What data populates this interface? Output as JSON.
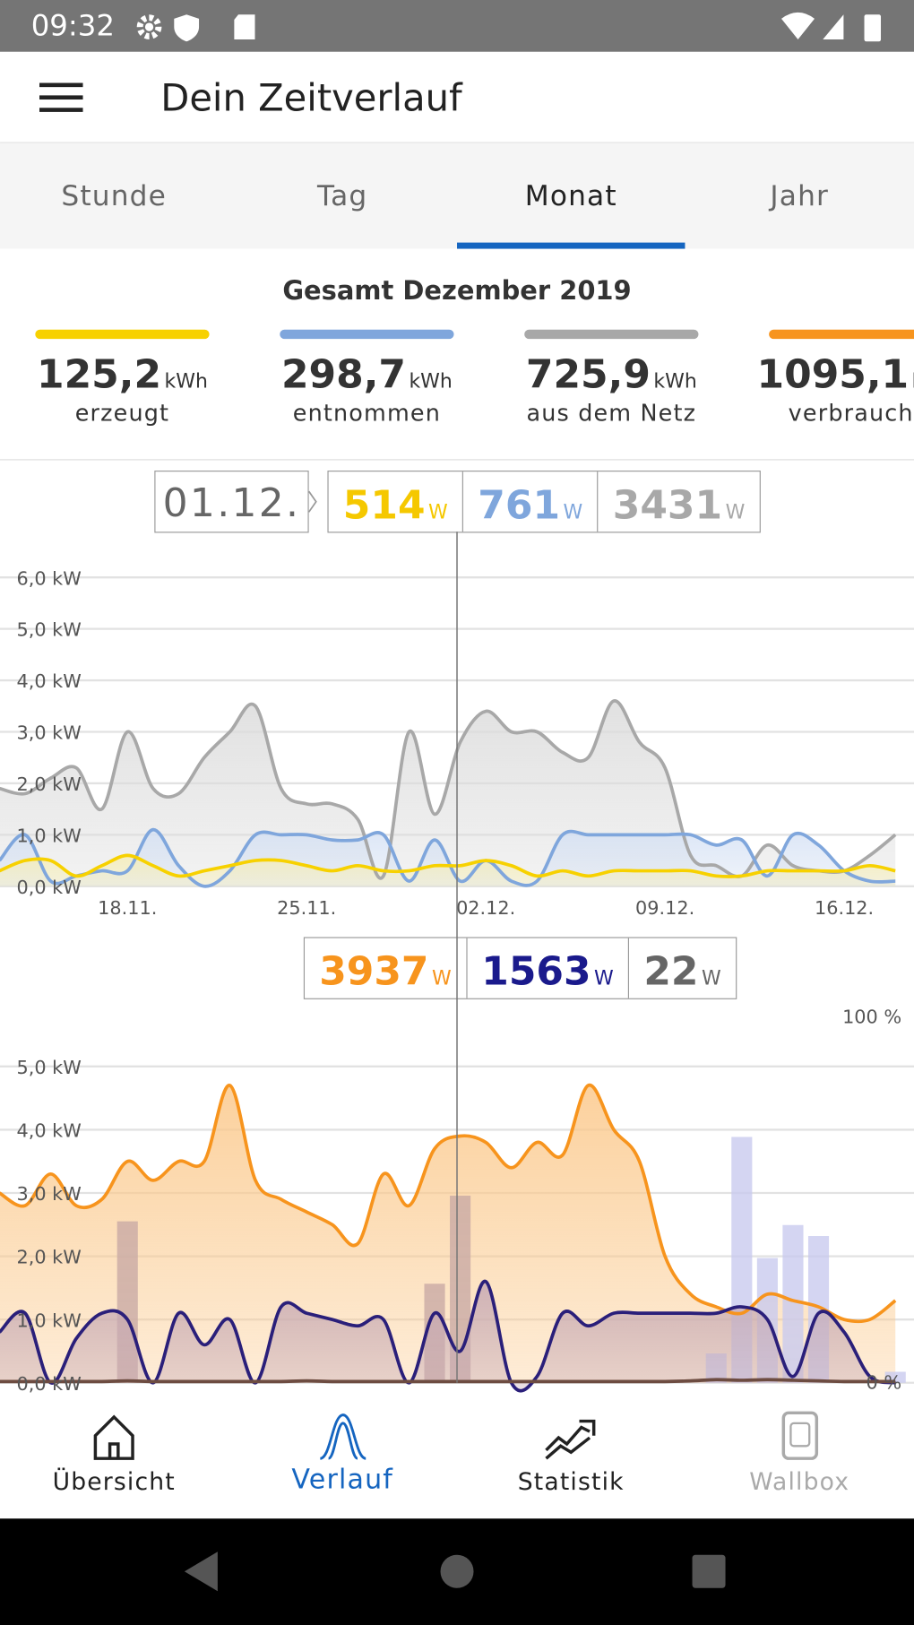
{
  "status_bar": {
    "time": "09:32"
  },
  "app_bar": {
    "title": "Dein Zeitverlauf"
  },
  "tabs": {
    "items": [
      "Stunde",
      "Tag",
      "Monat",
      "Jahr"
    ],
    "selected": 2
  },
  "summary": {
    "title": "Gesamt Dezember 2019",
    "items": [
      {
        "value": "125,2",
        "unit": "kWh",
        "label": "erzeugt",
        "color": "#f7d100"
      },
      {
        "value": "298,7",
        "unit": "kWh",
        "label": "entnommen",
        "color": "#7fa6dc"
      },
      {
        "value": "725,9",
        "unit": "kWh",
        "label": "aus dem Netz",
        "color": "#a8a8a8"
      },
      {
        "value": "1095,1",
        "unit": "kWh",
        "label": "verbraucht",
        "color": "#f7941d"
      }
    ]
  },
  "chart_data": [
    {
      "type": "line",
      "categories": [
        null,
        null,
        null,
        null,
        null,
        "18.11.",
        null,
        null,
        null,
        null,
        null,
        null,
        "25.11.",
        null,
        null,
        null,
        null,
        null,
        null,
        "02.12.",
        null,
        null,
        null,
        null,
        null,
        null,
        "09.12.",
        null,
        null,
        null,
        null,
        null,
        null,
        "16.12.",
        null,
        null
      ],
      "ylim": [
        0,
        6
      ],
      "yticks": [
        {
          "value": 0,
          "label": "0,0 kW"
        },
        {
          "value": 1,
          "label": "1,0 kW"
        },
        {
          "value": 2,
          "label": "2,0 kW"
        },
        {
          "value": 3,
          "label": "3,0 kW"
        },
        {
          "value": 4,
          "label": "4,0 kW"
        },
        {
          "value": 5,
          "label": "5,0 kW"
        },
        {
          "value": 6,
          "label": "6,0 kW"
        }
      ],
      "grid": true,
      "series": [
        {
          "color": "#a8a8a8",
          "fill": "#dcdcdc",
          "values": [
            1.9,
            1.8,
            2.1,
            2.3,
            1.5,
            3.0,
            1.9,
            1.8,
            2.5,
            3.0,
            3.5,
            1.9,
            1.6,
            1.6,
            1.3,
            0.2,
            3.0,
            1.4,
            2.8,
            3.4,
            3.0,
            3.0,
            2.6,
            2.5,
            3.6,
            2.8,
            2.3,
            0.6,
            0.4,
            0.2,
            0.8,
            0.4,
            0.3,
            0.3,
            0.6,
            1.0
          ]
        },
        {
          "color": "#7fa6dc",
          "fill": "#d5e1f4",
          "values": [
            0.5,
            1.0,
            0.1,
            0.2,
            0.3,
            0.3,
            1.1,
            0.4,
            0.0,
            0.3,
            1.0,
            1.0,
            1.0,
            0.9,
            0.9,
            1.0,
            0.1,
            0.9,
            0.1,
            0.5,
            0.1,
            0.1,
            1.0,
            1.0,
            1.0,
            1.0,
            1.0,
            1.0,
            0.8,
            0.9,
            0.2,
            1.0,
            0.8,
            0.3,
            0.1,
            0.1
          ]
        },
        {
          "color": "#f7d100",
          "fill": "#f6eeb8",
          "values": [
            0.3,
            0.5,
            0.5,
            0.2,
            0.4,
            0.6,
            0.4,
            0.2,
            0.3,
            0.4,
            0.5,
            0.5,
            0.4,
            0.3,
            0.4,
            0.3,
            0.3,
            0.4,
            0.4,
            0.5,
            0.4,
            0.2,
            0.3,
            0.2,
            0.3,
            0.3,
            0.3,
            0.3,
            0.2,
            0.2,
            0.3,
            0.3,
            0.3,
            0.3,
            0.4,
            0.3
          ]
        }
      ],
      "tooltip": {
        "date": "01.12.",
        "values": [
          {
            "value": 514,
            "unit": "W",
            "color": "#f5c800"
          },
          {
            "value": 761,
            "unit": "W",
            "color": "#7fa6dc"
          },
          {
            "value": 3431,
            "unit": "W",
            "color": "#a8a8a8"
          }
        ]
      }
    },
    {
      "type": "line",
      "categories": [
        null,
        null,
        null,
        null,
        null,
        null,
        null,
        null,
        null,
        null,
        null,
        null,
        null,
        null,
        null,
        null,
        null,
        null,
        null,
        null,
        null,
        null,
        null,
        null,
        null,
        null,
        null,
        null,
        null,
        null,
        null,
        null,
        null,
        null,
        null,
        null
      ],
      "ylim": [
        0,
        5.8
      ],
      "yticks": [
        {
          "value": 0,
          "label": "0,0 kW"
        },
        {
          "value": 1,
          "label": "1,0 kW"
        },
        {
          "value": 2,
          "label": "2,0 kW"
        },
        {
          "value": 3,
          "label": "3,0 kW"
        },
        {
          "value": 4,
          "label": "4,0 kW"
        },
        {
          "value": 5,
          "label": "5,0 kW"
        }
      ],
      "y2lim": [
        0,
        100
      ],
      "y2ticks": [
        {
          "value": 0,
          "label": "0 %"
        },
        {
          "value": 100,
          "label": "100 %"
        }
      ],
      "grid": true,
      "series": [
        {
          "type": "bar",
          "axis": "y2",
          "values": [
            null,
            null,
            null,
            null,
            null,
            44,
            null,
            null,
            null,
            null,
            null,
            null,
            null,
            null,
            null,
            null,
            null,
            27,
            51,
            null,
            null,
            null,
            null,
            null,
            null,
            null,
            null,
            null,
            8,
            67,
            34,
            43,
            40,
            null,
            null,
            3
          ],
          "colors": [
            null,
            null,
            null,
            null,
            null,
            "#c9aaa5",
            null,
            null,
            null,
            null,
            null,
            null,
            null,
            null,
            null,
            null,
            null,
            "#c9aaa5",
            "#c9aaa5",
            null,
            null,
            null,
            null,
            null,
            null,
            null,
            null,
            null,
            "#c9cbef",
            "#c9cbef",
            "#c9cbef",
            "#c9cbef",
            "#c9cbef",
            null,
            null,
            "#c9cbef"
          ]
        },
        {
          "color": "#f7941d",
          "fill": "#fbc98c",
          "values": [
            3.0,
            2.8,
            3.3,
            2.8,
            2.9,
            3.5,
            3.2,
            3.5,
            3.5,
            4.7,
            3.2,
            2.9,
            2.7,
            2.5,
            2.2,
            3.3,
            2.8,
            3.7,
            3.9,
            3.8,
            3.4,
            3.8,
            3.6,
            4.7,
            4.0,
            3.5,
            2.0,
            1.4,
            1.2,
            1.1,
            1.4,
            1.3,
            1.2,
            1.0,
            1.0,
            1.3
          ]
        },
        {
          "color": "#2a1f7a",
          "fill": "#c6a9b4",
          "values": [
            0.8,
            1.1,
            0.0,
            0.7,
            1.1,
            1.0,
            0.0,
            1.1,
            0.6,
            1.0,
            0.0,
            1.2,
            1.1,
            1.0,
            0.9,
            1.0,
            0.0,
            1.1,
            0.5,
            1.6,
            0.0,
            0.1,
            1.1,
            0.9,
            1.1,
            1.1,
            1.1,
            1.1,
            1.1,
            1.2,
            1.0,
            0.1,
            1.1,
            0.8,
            0.1,
            0.0
          ]
        },
        {
          "color": "#6d4c41",
          "values": [
            0.02,
            0.02,
            0.02,
            0.02,
            0.02,
            0.03,
            0.02,
            0.02,
            0.02,
            0.02,
            0.02,
            0.02,
            0.03,
            0.02,
            0.02,
            0.02,
            0.02,
            0.02,
            0.02,
            0.02,
            0.02,
            0.02,
            0.02,
            0.02,
            0.02,
            0.02,
            0.02,
            0.03,
            0.05,
            0.04,
            0.05,
            0.04,
            0.03,
            0.02,
            0.02,
            0.02
          ]
        }
      ],
      "tooltip": {
        "values": [
          {
            "value": 3937,
            "unit": "W",
            "color": "#f7941d"
          },
          {
            "value": 1563,
            "unit": "W",
            "color": "#1a1a8c"
          },
          {
            "value": 22,
            "unit": "W",
            "color": "#666666"
          }
        ]
      }
    }
  ],
  "bottom_nav": {
    "items": [
      "Übersicht",
      "Verlauf",
      "Statistik",
      "Wallbox"
    ],
    "selected": 1
  }
}
